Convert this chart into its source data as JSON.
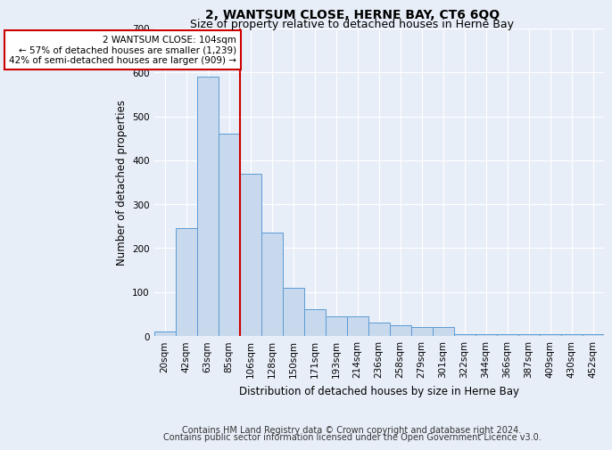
{
  "title": "2, WANTSUM CLOSE, HERNE BAY, CT6 6QQ",
  "subtitle": "Size of property relative to detached houses in Herne Bay",
  "xlabel": "Distribution of detached houses by size in Herne Bay",
  "ylabel": "Number of detached properties",
  "categories": [
    "20sqm",
    "42sqm",
    "63sqm",
    "85sqm",
    "106sqm",
    "128sqm",
    "150sqm",
    "171sqm",
    "193sqm",
    "214sqm",
    "236sqm",
    "258sqm",
    "279sqm",
    "301sqm",
    "322sqm",
    "344sqm",
    "366sqm",
    "387sqm",
    "409sqm",
    "430sqm",
    "452sqm"
  ],
  "values": [
    10,
    245,
    590,
    460,
    370,
    235,
    110,
    60,
    45,
    45,
    30,
    25,
    20,
    20,
    5,
    5,
    5,
    5,
    5,
    5,
    5
  ],
  "bar_color": "#c8d9ed",
  "bar_edge_color": "#5b9bd5",
  "red_line_index": 4,
  "annotation_text": "2 WANTSUM CLOSE: 104sqm\n← 57% of detached houses are smaller (1,239)\n42% of semi-detached houses are larger (909) →",
  "annotation_box_color": "#ffffff",
  "annotation_box_edge_color": "#cc0000",
  "ylim": [
    0,
    700
  ],
  "yticks": [
    0,
    100,
    200,
    300,
    400,
    500,
    600,
    700
  ],
  "footer_line1": "Contains HM Land Registry data © Crown copyright and database right 2024.",
  "footer_line2": "Contains public sector information licensed under the Open Government Licence v3.0.",
  "bg_color": "#e8eef8",
  "plot_bg_color": "#e8eef8",
  "grid_color": "#ffffff",
  "title_fontsize": 10,
  "subtitle_fontsize": 9,
  "axis_label_fontsize": 8.5,
  "tick_fontsize": 7.5,
  "footer_fontsize": 7
}
